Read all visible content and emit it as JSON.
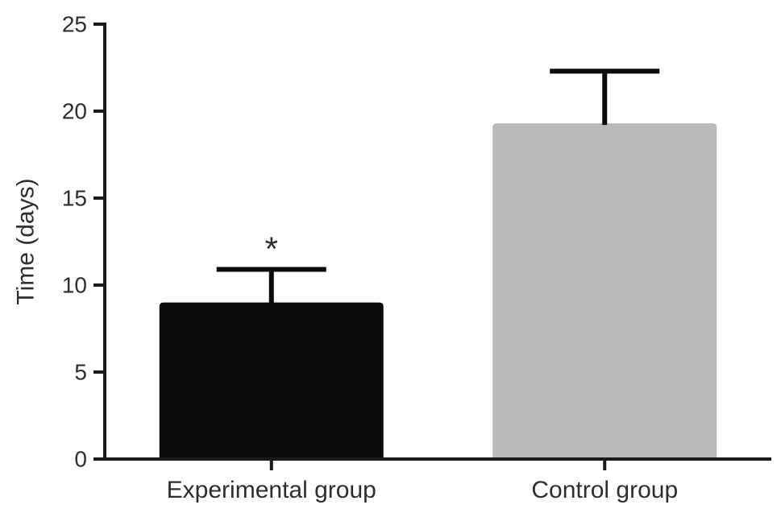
{
  "figure": {
    "background": "#ffffff"
  },
  "chart_data": {
    "type": "bar",
    "title": "",
    "xlabel": "",
    "ylabel": "Time (days)",
    "categories": [
      "Experimental group",
      "Control group"
    ],
    "values": [
      9.0,
      19.3
    ],
    "errors_plus": [
      1.9,
      3.0
    ],
    "bar_colors": [
      "#0a0a0a",
      "#b9b9b9"
    ],
    "ylim": [
      0,
      25
    ],
    "yticks": [
      0,
      5,
      10,
      15,
      20,
      25
    ],
    "ytick_labels": [
      "0",
      "5",
      "10",
      "15",
      "20",
      "25"
    ],
    "grid": false,
    "legend": false,
    "annotations": [
      {
        "text": "*",
        "category_index": 0,
        "y": 12.1
      }
    ],
    "colors": {
      "axis": "#1a1a1a",
      "text": "#2e2e2e",
      "error_bar": "#0a0a0a",
      "background": "#ffffff"
    }
  }
}
